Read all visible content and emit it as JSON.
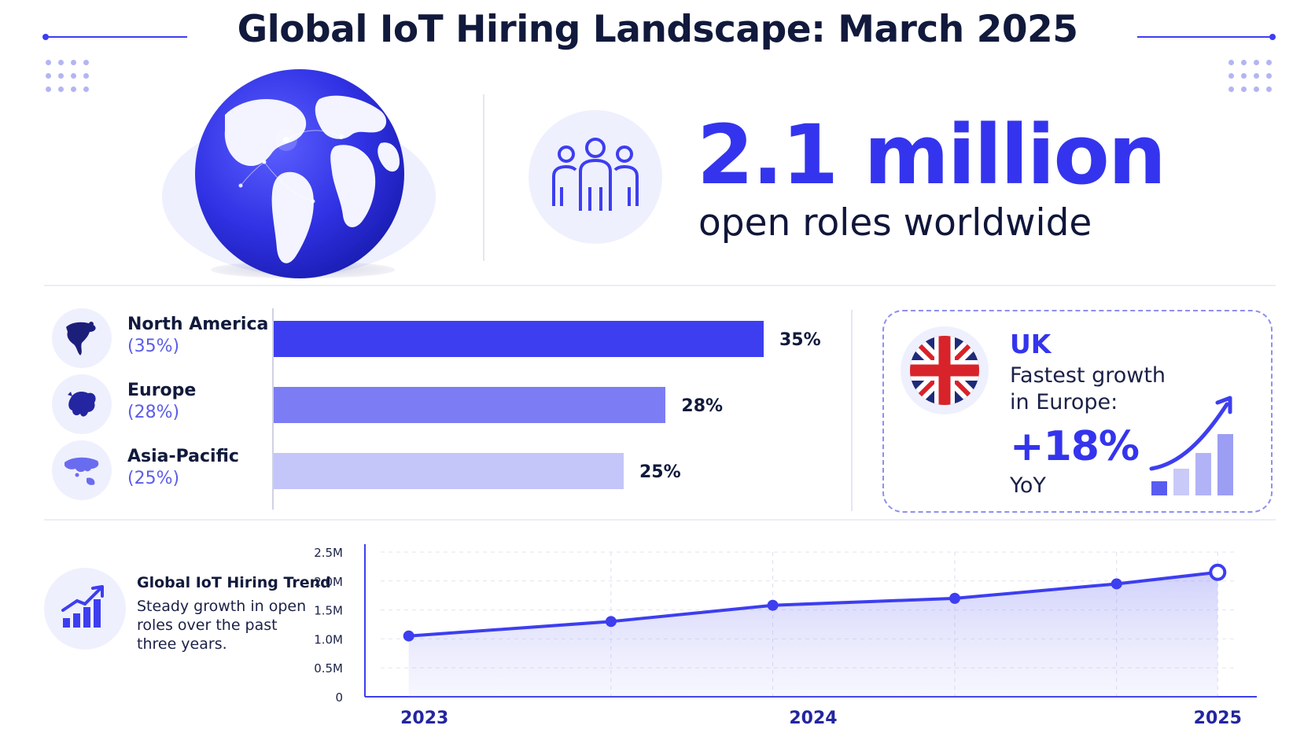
{
  "header": {
    "title": "Global IoT Hiring Landscape: March 2025"
  },
  "hero": {
    "value": "2.1 million",
    "subtitle": "open roles worldwide",
    "icon": "people-group-icon",
    "globe_icon": "globe-icon"
  },
  "regions": [
    {
      "name": "North America",
      "pct_text": "(35%)",
      "bar_label": "35%",
      "value": 35,
      "color": "#3d3ef0",
      "icon": "north-america-map-icon"
    },
    {
      "name": "Europe",
      "pct_text": "(28%)",
      "bar_label": "28%",
      "value": 28,
      "color": "#7c7df4",
      "icon": "europe-map-icon"
    },
    {
      "name": "Asia-Pacific",
      "pct_text": "(25%)",
      "bar_label": "25%",
      "value": 25,
      "color": "#c4c5f9",
      "icon": "asia-pacific-map-icon"
    }
  ],
  "uk_highlight": {
    "country": "UK",
    "description_line1": "Fastest growth",
    "description_line2": "in Europe:",
    "value": "+18%",
    "period": "YoY",
    "flag_icon": "uk-flag-icon",
    "growth_icon": "growth-chart-icon"
  },
  "trend": {
    "title": "Global IoT Hiring Trend",
    "desc_line1": "Steady growth in open",
    "desc_line2": "roles over the past",
    "desc_line3": "three years.",
    "icon": "trend-chart-icon"
  },
  "colors": {
    "accent": "#3434ee",
    "accent_light": "#eff0fd",
    "text": "#111a3c"
  },
  "chart_data": [
    {
      "type": "bar",
      "orientation": "horizontal",
      "categories": [
        "North America",
        "Europe",
        "Asia-Pacific"
      ],
      "values": [
        35,
        28,
        25
      ],
      "unit": "%"
    },
    {
      "type": "area",
      "x": [
        2023.0,
        2023.5,
        2023.9,
        2024.35,
        2024.75,
        2025.0
      ],
      "y": [
        1.05,
        1.3,
        1.58,
        1.7,
        1.95,
        2.15
      ],
      "x_tick_labels": [
        "2023",
        "2024",
        "2025"
      ],
      "x_ticks": [
        2023,
        2024,
        2025
      ],
      "y_tick_labels": [
        "0",
        "0.5M",
        "1.0M",
        "1.5M",
        "2.0M",
        "2.5M"
      ],
      "y_ticks": [
        0,
        0.5,
        1.0,
        1.5,
        2.0,
        2.5
      ],
      "xlim": [
        2022.95,
        2025.05
      ],
      "ylim": [
        0,
        2.5
      ],
      "grid": true
    }
  ]
}
